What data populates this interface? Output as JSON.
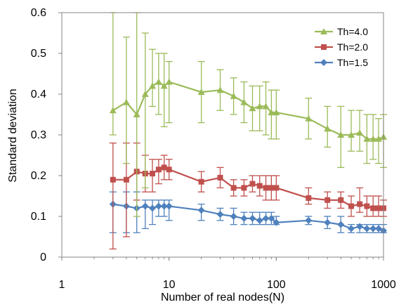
{
  "chart_data": {
    "type": "line",
    "title": "",
    "xlabel": "Number of real nodes(N)",
    "ylabel": "Standard deviation",
    "xscale": "log",
    "xlim": [
      1,
      1000
    ],
    "ylim": [
      0,
      0.6
    ],
    "x_ticks": [
      1,
      10,
      100,
      1000
    ],
    "x_tick_labels": [
      "1",
      "10",
      "100",
      "1000"
    ],
    "y_ticks": [
      0,
      0.1,
      0.2,
      0.3,
      0.4,
      0.5,
      0.6
    ],
    "y_tick_labels": [
      "0",
      "0.1",
      "0.2",
      "0.3",
      "0.4",
      "0.5",
      "0.6"
    ],
    "grid": false,
    "legend_position": "top-right",
    "x": [
      3,
      4,
      5,
      6,
      7,
      8,
      9,
      10,
      20,
      30,
      40,
      50,
      60,
      70,
      80,
      90,
      100,
      200,
      300,
      400,
      500,
      600,
      700,
      800,
      900,
      1000
    ],
    "series": [
      {
        "name": "Th=4.0",
        "color": "#9BBB59",
        "marker": "triangle",
        "values": [
          0.36,
          0.38,
          0.35,
          0.4,
          0.42,
          0.43,
          0.42,
          0.43,
          0.405,
          0.41,
          0.395,
          0.38,
          0.365,
          0.37,
          0.37,
          0.355,
          0.355,
          0.34,
          0.315,
          0.3,
          0.3,
          0.305,
          0.29,
          0.29,
          0.29,
          0.295
        ],
        "err_low": [
          0.3,
          0.23,
          0.1,
          0.17,
          0.37,
          0.35,
          0.32,
          0.33,
          0.33,
          0.36,
          0.35,
          0.33,
          0.31,
          0.31,
          0.3,
          0.29,
          0.29,
          0.29,
          0.27,
          0.22,
          0.26,
          0.26,
          0.23,
          0.24,
          0.23,
          0.22
        ],
        "err_high": [
          0.6,
          0.54,
          0.6,
          0.55,
          0.51,
          0.5,
          0.5,
          0.48,
          0.48,
          0.46,
          0.44,
          0.43,
          0.42,
          0.42,
          0.43,
          0.41,
          0.41,
          0.39,
          0.37,
          0.37,
          0.36,
          0.36,
          0.35,
          0.35,
          0.34,
          0.35
        ]
      },
      {
        "name": "Th=2.0",
        "color": "#C0504D",
        "marker": "square",
        "values": [
          0.19,
          0.19,
          0.21,
          0.205,
          0.205,
          0.215,
          0.22,
          0.215,
          0.185,
          0.195,
          0.17,
          0.17,
          0.18,
          0.175,
          0.17,
          0.17,
          0.17,
          0.145,
          0.14,
          0.14,
          0.125,
          0.13,
          0.125,
          0.12,
          0.12,
          0.12
        ],
        "err_low": [
          0.02,
          0.05,
          0.14,
          0.16,
          0.16,
          0.18,
          0.19,
          0.19,
          0.16,
          0.17,
          0.15,
          0.15,
          0.16,
          0.15,
          0.14,
          0.14,
          0.14,
          0.13,
          0.12,
          0.12,
          0.1,
          0.11,
          0.1,
          0.1,
          0.1,
          0.1
        ],
        "err_high": [
          0.28,
          0.28,
          0.28,
          0.25,
          0.24,
          0.24,
          0.25,
          0.24,
          0.21,
          0.22,
          0.19,
          0.19,
          0.2,
          0.2,
          0.2,
          0.2,
          0.2,
          0.17,
          0.16,
          0.16,
          0.15,
          0.17,
          0.15,
          0.15,
          0.15,
          0.14
        ]
      },
      {
        "name": "Th=1.5",
        "color": "#4F81BD",
        "marker": "diamond",
        "values": [
          0.13,
          0.125,
          0.12,
          0.125,
          0.12,
          0.125,
          0.125,
          0.125,
          0.115,
          0.105,
          0.1,
          0.095,
          0.095,
          0.09,
          0.095,
          0.095,
          0.085,
          0.09,
          0.085,
          0.08,
          0.07,
          0.075,
          0.07,
          0.07,
          0.07,
          0.065
        ],
        "err_low": [
          0.06,
          0.06,
          0.06,
          0.07,
          0.08,
          0.1,
          0.1,
          0.09,
          0.09,
          0.09,
          0.08,
          0.08,
          0.08,
          0.08,
          0.08,
          0.08,
          0.08,
          0.08,
          0.07,
          0.06,
          0.06,
          0.06,
          0.06,
          0.06,
          0.06,
          0.06
        ],
        "err_high": [
          0.16,
          0.16,
          0.16,
          0.14,
          0.14,
          0.14,
          0.14,
          0.14,
          0.13,
          0.12,
          0.12,
          0.11,
          0.11,
          0.11,
          0.11,
          0.11,
          0.1,
          0.1,
          0.1,
          0.1,
          0.08,
          0.08,
          0.08,
          0.08,
          0.08,
          0.08
        ]
      }
    ]
  }
}
